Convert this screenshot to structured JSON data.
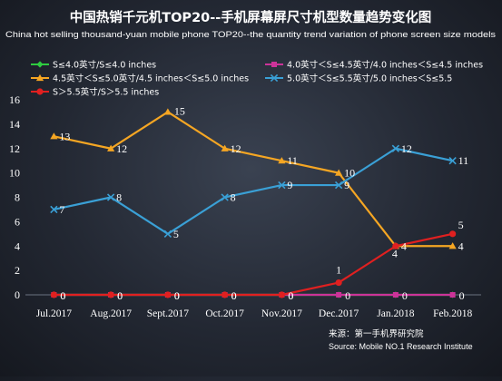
{
  "colors": {
    "le4_0": "#2ecc40",
    "r4_0_4_5": "#cc3399",
    "r4_5_5_0": "#f5a623",
    "r5_0_5_5": "#3aa0d6",
    "gt5_5": "#e02020",
    "axis_text": "#ffffff",
    "grid": "#6b7280"
  },
  "chart_data": {
    "type": "line",
    "title": "中国热销千元机TOP20--手机屏幕屏尺寸机型数量趋势变化图",
    "subtitle": "China hot selling thousand-yuan mobile phone TOP20--the quantity trend variation of phone screen size models",
    "xlabel": "",
    "ylabel": "",
    "ylim": [
      0,
      16
    ],
    "yticks": [
      0,
      2,
      4,
      6,
      8,
      10,
      12,
      14,
      16
    ],
    "grid": false,
    "legend_position": "top-left",
    "categories": [
      "Jul.2017",
      "Aug.2017",
      "Sept.2017",
      "Oct.2017",
      "Nov.2017",
      "Dec.2017",
      "Jan.2018",
      "Feb.2018"
    ],
    "series": [
      {
        "name": "S≤4.0英寸/S≤4.0 inches",
        "color_key": "le4_0",
        "marker": "diamond",
        "values": [
          0,
          0,
          0,
          0,
          0,
          0,
          0,
          0
        ],
        "show_labels": false
      },
      {
        "name": "4.0英寸＜S≤4.5英寸/4.0 inches＜S≤4.5 inches",
        "color_key": "r4_0_4_5",
        "marker": "square",
        "values": [
          0,
          0,
          0,
          0,
          0,
          0,
          0,
          0
        ],
        "show_labels": true
      },
      {
        "name": "4.5英寸＜S≤5.0英寸/4.5 inches＜S≤5.0 inches",
        "color_key": "r4_5_5_0",
        "marker": "triangle",
        "values": [
          13,
          12,
          15,
          12,
          11,
          10,
          4,
          4
        ],
        "show_labels": true
      },
      {
        "name": "5.0英寸＜S≤5.5英寸/5.0 inches＜S≤5.5",
        "color_key": "r5_0_5_5",
        "marker": "x",
        "values": [
          7,
          8,
          5,
          8,
          9,
          9,
          12,
          11
        ],
        "show_labels": true
      },
      {
        "name": "S＞5.5英寸/S＞5.5 inches",
        "color_key": "gt5_5",
        "marker": "circle",
        "values": [
          0,
          0,
          0,
          0,
          0,
          1,
          4,
          5
        ],
        "show_labels": true
      }
    ]
  },
  "source": {
    "line1": "来源：第一手机界研究院",
    "line2": "Source: Mobile NO.1 Research Institute"
  }
}
